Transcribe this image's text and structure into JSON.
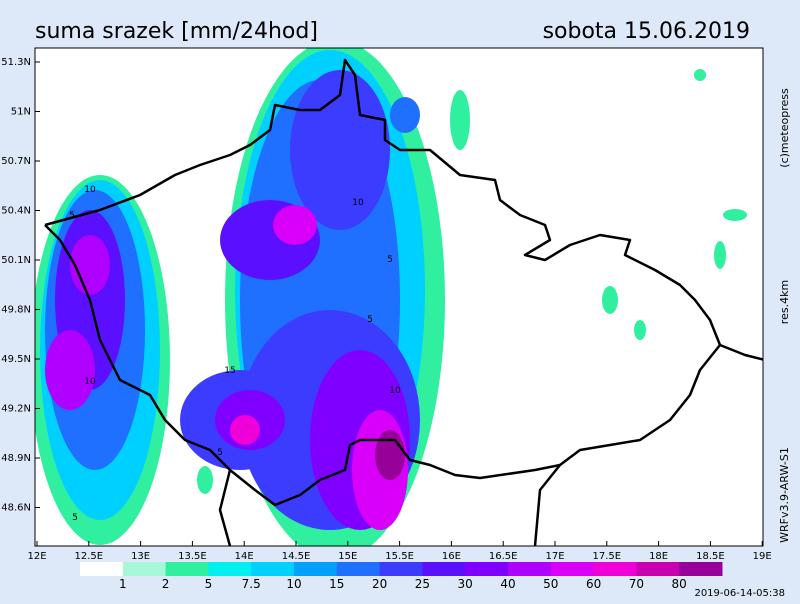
{
  "header": {
    "title": "suma srazek [mm/24hod]",
    "date": "sobota 15.06.2019"
  },
  "side_labels": {
    "credit": "(c)meteopress",
    "resolution": "res.4km",
    "model": "WRFv3.9-ARW-S1"
  },
  "footer": {
    "timestamp": "2019-06-14-05:38"
  },
  "lat_ticks": [
    "51.3N",
    "51N",
    "50.7N",
    "50.4N",
    "50.1N",
    "49.8N",
    "49.5N",
    "49.2N",
    "48.9N",
    "48.6N"
  ],
  "lon_ticks": [
    "12E",
    "12.5E",
    "13E",
    "13.5E",
    "14E",
    "14.5E",
    "15E",
    "15.5E",
    "16E",
    "16.5E",
    "17E",
    "17.5E",
    "18E",
    "18.5E",
    "19E"
  ],
  "legend": {
    "labels": [
      1,
      2,
      5,
      7.5,
      10,
      15,
      20,
      25,
      30,
      40,
      50,
      60,
      70,
      80
    ],
    "colors": [
      "#ffffff",
      "#a8f8d8",
      "#30f0a0",
      "#00f0f0",
      "#00d0ff",
      "#00a0ff",
      "#2070ff",
      "#3c3cff",
      "#5a10ff",
      "#8000ff",
      "#b000ff",
      "#d800f8",
      "#f000d8",
      "#c800b0",
      "#98009a"
    ]
  },
  "contour_labels": [
    "10",
    "5",
    "10",
    "5",
    "15",
    "5",
    "10",
    "10",
    "5",
    "5"
  ]
}
